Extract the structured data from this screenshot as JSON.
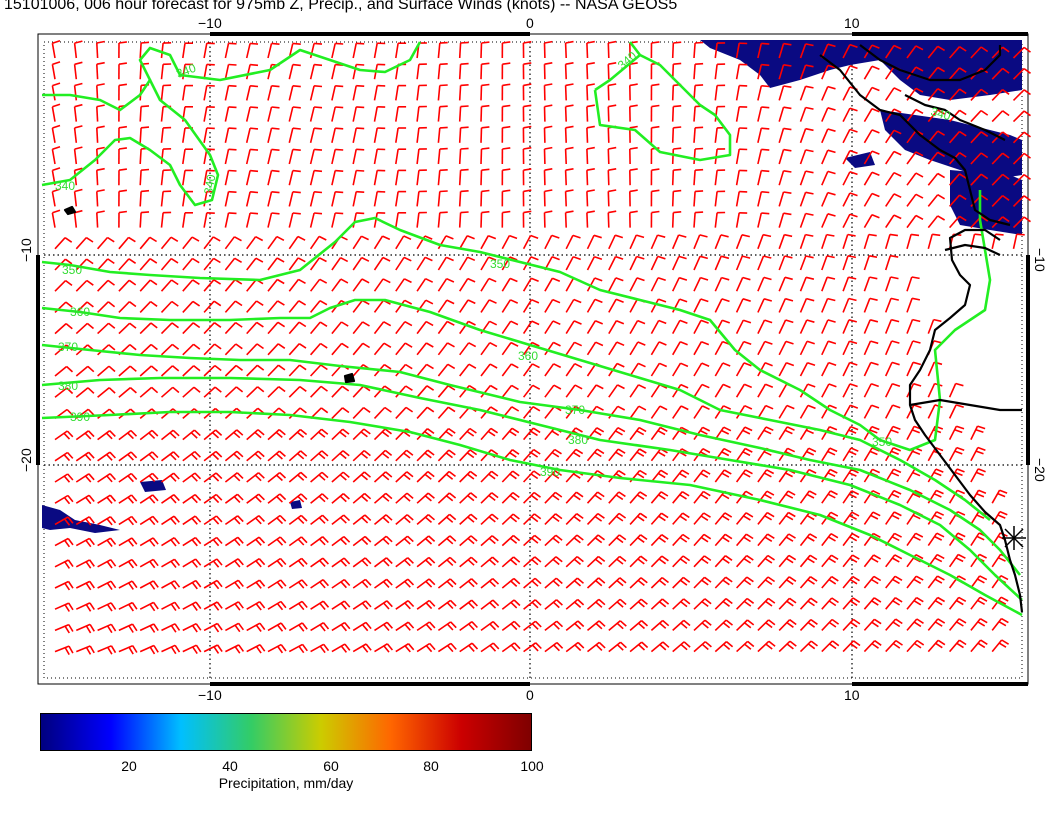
{
  "title": "15101006, 006 hour forecast for 975mb Z, Precip., and Surface Winds (knots) -- NASA GEOS5",
  "axes": {
    "top_labels": [
      "−10",
      "0",
      "10"
    ],
    "bottom_labels": [
      "−10",
      "0",
      "10"
    ],
    "left_labels": [
      "−10",
      "−20"
    ],
    "right_labels": [
      "−10",
      "−20"
    ]
  },
  "contour_labels": [
    "340",
    "340",
    "340",
    "340",
    "350",
    "350",
    "360",
    "360",
    "370",
    "370",
    "380",
    "380",
    "390",
    "390",
    "350",
    "340"
  ],
  "colorbar": {
    "ticks": [
      "20",
      "40",
      "60",
      "80",
      "100"
    ],
    "title": "Precipitation, mm/day",
    "colors": [
      "#00007f",
      "#0000ff",
      "#00bfff",
      "#33cc66",
      "#cccc00",
      "#ff6600",
      "#cc0000",
      "#7f0000"
    ]
  },
  "colors": {
    "wind_barbs": "#ff0000",
    "contours": "#22ee22",
    "coastline": "#000000",
    "precip_low": "#0a0a82"
  }
}
